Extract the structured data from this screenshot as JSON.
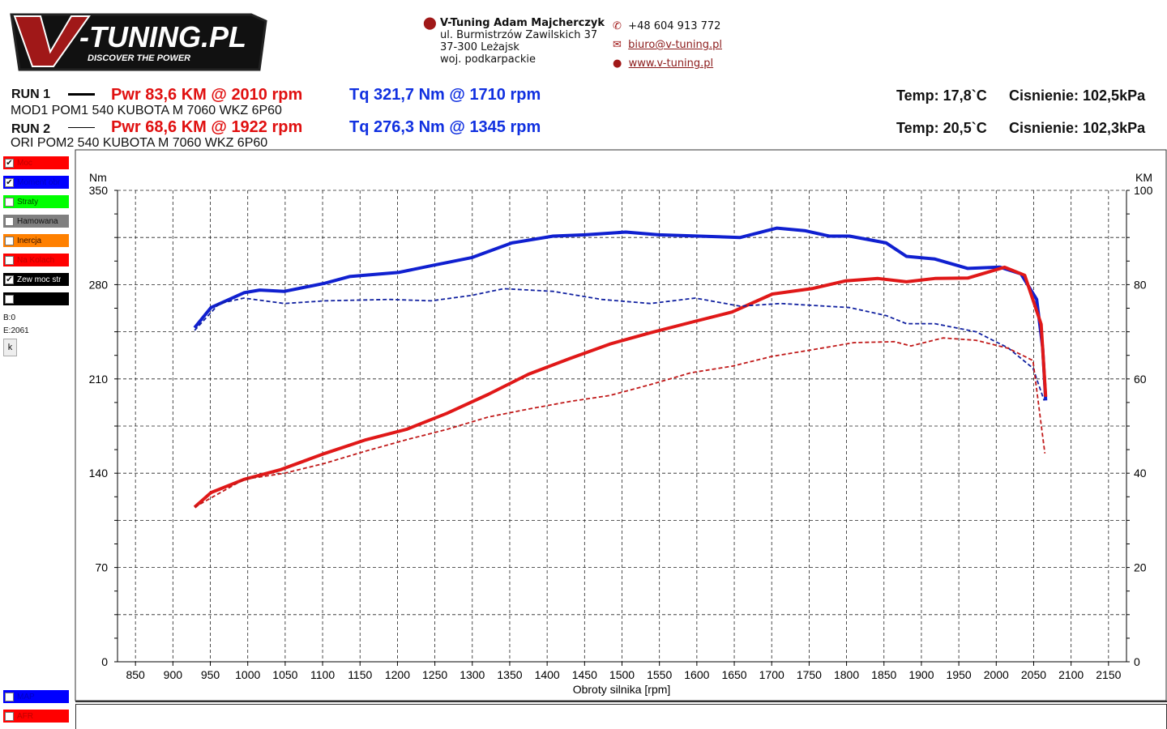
{
  "logo": {
    "text": "V-TUNING.PL",
    "tagline": "DISCOVER THE POWER"
  },
  "contact": {
    "company": "V-Tuning Adam Majcherczyk",
    "street": "ul. Burmistrzów Zawilskich 37",
    "city": "37-300 Leżajsk",
    "region": "woj. podkarpackie",
    "phone": "+48 604 913 772",
    "email": "biuro@v-tuning.pl",
    "web": "www.v-tuning.pl"
  },
  "runs": [
    {
      "label": "RUN 1",
      "desc": "MOD1 POM1 540 KUBOTA M 7060 WKZ 6P60",
      "pwr": "Pwr  83,6 KM @ 2010 rpm",
      "tq": "Tq 321,7 Nm @ 1710 rpm",
      "temp": "Temp: 17,8`C",
      "press": "Cisnienie: 102,5kPa"
    },
    {
      "label": "RUN 2",
      "desc": "ORI POM2 540 KUBOTA M 7060 WKZ 6P60",
      "pwr": "Pwr  68,6 KM @ 1922 rpm",
      "tq": "Tq 276,3 Nm @ 1345 rpm",
      "temp": "Temp: 20,5`C",
      "press": "Cisnienie: 102,3kPa"
    }
  ],
  "legend": [
    {
      "label": "Moc",
      "color": "#ff0000",
      "text": "#c00000",
      "checked": true
    },
    {
      "label": "Moment obr",
      "color": "#0000ff",
      "text": "#0000c0",
      "checked": true
    },
    {
      "label": "Straty",
      "color": "#00ff00",
      "text": "#004400",
      "checked": false
    },
    {
      "label": "Hamowana",
      "color": "#808080",
      "text": "#111111",
      "checked": false
    },
    {
      "label": "Inercja",
      "color": "#ff8000",
      "text": "#331100",
      "checked": false
    },
    {
      "label": "Na Kolach",
      "color": "#ff0000",
      "text": "#c00000",
      "checked": false
    },
    {
      "label": "Zew moc str",
      "color": "#000000",
      "text": "#ffffff",
      "checked": true
    },
    {
      "label": "",
      "color": "#000000",
      "text": "#ffffff",
      "checked": false
    }
  ],
  "legend_bottom": [
    {
      "label": "MAP",
      "color": "#0000ff",
      "text": "#0000c0"
    },
    {
      "label": "AFR",
      "color": "#ff0000",
      "text": "#c00000"
    }
  ],
  "markers": {
    "b": "B:0",
    "e": "E:2061",
    "k_button": "k"
  },
  "chart_data": {
    "type": "line",
    "xlabel": "Obroty silnika [rpm]",
    "ylabel_left": "Nm",
    "ylabel_right": "KM",
    "xlim": [
      826,
      2174
    ],
    "ylim_left": [
      0,
      350
    ],
    "ylim_right": [
      0,
      100
    ],
    "x_ticks": [
      850,
      900,
      950,
      1000,
      1050,
      1100,
      1150,
      1200,
      1250,
      1300,
      1350,
      1400,
      1450,
      1500,
      1550,
      1600,
      1650,
      1700,
      1750,
      1800,
      1850,
      1900,
      1950,
      2000,
      2050,
      2100,
      2150
    ],
    "y_ticks_left": [
      0,
      70,
      140,
      210,
      280,
      350
    ],
    "y_ticks_right": [
      0,
      20,
      40,
      60,
      80,
      100
    ],
    "grid": true,
    "series": [
      {
        "run": "RUN 1",
        "quantity": "Tq",
        "axis": "left",
        "color": "#1020d0",
        "style": "solid",
        "x": [
          929,
          951,
          995,
          1016,
          1049,
          1103,
          1136,
          1201,
          1245,
          1299,
          1353,
          1408,
          1451,
          1505,
          1549,
          1603,
          1658,
          1707,
          1745,
          1777,
          1804,
          1853,
          1880,
          1918,
          1962,
          2005,
          2033,
          2054,
          2062,
          2066
        ],
        "y": [
          248,
          263,
          274,
          276,
          275,
          281,
          286,
          289,
          294,
          300,
          311,
          316,
          317,
          319,
          317,
          316,
          315,
          322,
          320,
          316,
          316,
          311,
          301,
          299,
          292,
          293,
          288,
          269,
          233,
          194
        ]
      },
      {
        "run": "RUN 1",
        "quantity": "Pwr",
        "axis": "right",
        "color": "#e01818",
        "style": "solid",
        "x": [
          929,
          951,
          995,
          1043,
          1103,
          1158,
          1212,
          1266,
          1321,
          1375,
          1430,
          1484,
          1538,
          1592,
          1647,
          1701,
          1755,
          1799,
          1842,
          1880,
          1918,
          1962,
          2011,
          2038,
          2060,
          2066
        ],
        "y": [
          32.8,
          35.9,
          38.7,
          40.7,
          44.2,
          47.1,
          49.3,
          52.7,
          56.7,
          61.0,
          64.3,
          67.4,
          69.8,
          72.0,
          74.2,
          78.0,
          79.2,
          80.8,
          81.3,
          80.6,
          81.3,
          81.4,
          83.7,
          82.0,
          71.6,
          56.2
        ]
      },
      {
        "run": "RUN 2",
        "quantity": "Tq",
        "axis": "left",
        "color": "#1020a0",
        "style": "dashed",
        "x": [
          929,
          962,
          995,
          1049,
          1103,
          1190,
          1245,
          1299,
          1342,
          1408,
          1473,
          1538,
          1598,
          1658,
          1712,
          1804,
          1853,
          1880,
          1918,
          1973,
          2016,
          2049,
          2064
        ],
        "y": [
          246,
          266,
          270,
          266,
          268,
          269,
          268,
          272,
          277,
          275,
          269,
          266,
          270,
          264,
          266,
          263,
          257,
          251,
          251,
          245,
          233,
          218,
          194
        ]
      },
      {
        "run": "RUN 2",
        "quantity": "Pwr",
        "axis": "right",
        "color": "#c01818",
        "style": "dashed",
        "x": [
          929,
          995,
          1049,
          1103,
          1158,
          1212,
          1266,
          1321,
          1375,
          1430,
          1484,
          1538,
          1592,
          1647,
          1701,
          1755,
          1810,
          1864,
          1886,
          1929,
          1973,
          2016,
          2049,
          2065
        ],
        "y": [
          32.8,
          38.7,
          40.0,
          42.1,
          44.7,
          47.1,
          49.3,
          51.9,
          53.6,
          55.2,
          56.5,
          58.8,
          61.3,
          62.7,
          64.8,
          66.2,
          67.7,
          67.9,
          67.0,
          68.7,
          68.2,
          66.5,
          63.9,
          44.2
        ]
      }
    ]
  }
}
